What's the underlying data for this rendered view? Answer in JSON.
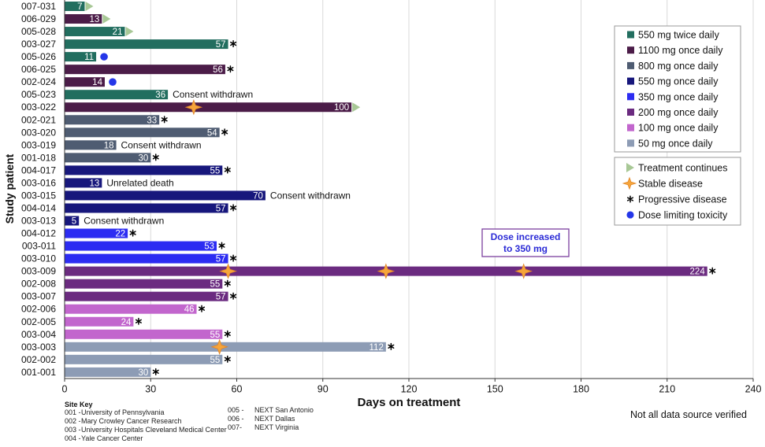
{
  "chart_data": {
    "type": "bar",
    "xlabel": "Days on treatment",
    "ylabel": "Study patient",
    "xlim": [
      0,
      240
    ],
    "xticks": [
      0,
      30,
      60,
      90,
      120,
      150,
      180,
      210,
      240
    ],
    "grid": true,
    "dose_groups": [
      {
        "label": "550 mg twice daily",
        "color": "#226e5f"
      },
      {
        "label": "1100 mg once daily",
        "color": "#4b1c48"
      },
      {
        "label": "800 mg once daily",
        "color": "#4f5c72"
      },
      {
        "label": "550 mg once daily",
        "color": "#17177c"
      },
      {
        "label": "350 mg once daily",
        "color": "#2c2cf2"
      },
      {
        "label": "200 mg once daily",
        "color": "#6b2b80"
      },
      {
        "label": "100 mg once daily",
        "color": "#c266cd"
      },
      {
        "label": "50 mg once daily",
        "color": "#8d9cb5"
      }
    ],
    "marker_legend": [
      {
        "label": "Treatment continues",
        "icon": "triangle-icon",
        "color": "#a8c896"
      },
      {
        "label": "Stable disease",
        "icon": "star-icon",
        "color": "#f6a53a"
      },
      {
        "label": "Progressive disease",
        "icon": "asterisk-icon",
        "color": "#000000"
      },
      {
        "label": "Dose limiting toxicity",
        "icon": "dot-icon",
        "color": "#2436e8"
      }
    ],
    "patients": [
      {
        "id": "007-031",
        "days": 7,
        "dose_group": 0,
        "end": "triangle-icon"
      },
      {
        "id": "006-029",
        "days": 13,
        "dose_group": 1,
        "end": "triangle-icon"
      },
      {
        "id": "005-028",
        "days": 21,
        "dose_group": 0,
        "end": "triangle-icon"
      },
      {
        "id": "003-027",
        "days": 57,
        "dose_group": 0,
        "end": "asterisk-icon"
      },
      {
        "id": "005-026",
        "days": 11,
        "dose_group": 0,
        "end": "dot-icon"
      },
      {
        "id": "006-025",
        "days": 56,
        "dose_group": 1,
        "end": "asterisk-icon"
      },
      {
        "id": "002-024",
        "days": 14,
        "dose_group": 1,
        "end": "dot-icon"
      },
      {
        "id": "005-023",
        "days": 36,
        "dose_group": 0,
        "note": "Consent withdrawn"
      },
      {
        "id": "003-022",
        "days": 100,
        "dose_group": 1,
        "end": "triangle-icon",
        "stable_disease": [
          45
        ]
      },
      {
        "id": "002-021",
        "days": 33,
        "dose_group": 2,
        "end": "asterisk-icon"
      },
      {
        "id": "003-020",
        "days": 54,
        "dose_group": 2,
        "end": "asterisk-icon"
      },
      {
        "id": "003-019",
        "days": 18,
        "dose_group": 2,
        "note": "Consent withdrawn"
      },
      {
        "id": "001-018",
        "days": 30,
        "dose_group": 2,
        "end": "asterisk-icon"
      },
      {
        "id": "004-017",
        "days": 55,
        "dose_group": 3,
        "end": "asterisk-icon"
      },
      {
        "id": "003-016",
        "days": 13,
        "dose_group": 3,
        "note": "Unrelated death"
      },
      {
        "id": "003-015",
        "days": 70,
        "dose_group": 3,
        "note": "Consent withdrawn"
      },
      {
        "id": "004-014",
        "days": 57,
        "dose_group": 3,
        "end": "asterisk-icon"
      },
      {
        "id": "003-013",
        "days": 5,
        "dose_group": 3,
        "note": "Consent withdrawn"
      },
      {
        "id": "004-012",
        "days": 22,
        "dose_group": 4,
        "end": "asterisk-icon"
      },
      {
        "id": "003-011",
        "days": 53,
        "dose_group": 4,
        "end": "asterisk-icon"
      },
      {
        "id": "003-010",
        "days": 57,
        "dose_group": 4,
        "end": "asterisk-icon"
      },
      {
        "id": "003-009",
        "days": 224,
        "dose_group": 5,
        "end": "asterisk-icon",
        "stable_disease": [
          57,
          112,
          160
        ]
      },
      {
        "id": "002-008",
        "days": 55,
        "dose_group": 5,
        "end": "asterisk-icon"
      },
      {
        "id": "003-007",
        "days": 57,
        "dose_group": 5,
        "end": "asterisk-icon"
      },
      {
        "id": "002-006",
        "days": 46,
        "dose_group": 6,
        "end": "asterisk-icon"
      },
      {
        "id": "002-005",
        "days": 24,
        "dose_group": 6,
        "end": "asterisk-icon"
      },
      {
        "id": "003-004",
        "days": 55,
        "dose_group": 6,
        "end": "asterisk-icon"
      },
      {
        "id": "003-003",
        "days": 112,
        "dose_group": 7,
        "end": "asterisk-icon",
        "stable_disease": [
          54
        ]
      },
      {
        "id": "002-002",
        "days": 55,
        "dose_group": 7,
        "end": "asterisk-icon"
      },
      {
        "id": "001-001",
        "days": 30,
        "dose_group": 7,
        "end": "asterisk-icon"
      }
    ],
    "annotation": {
      "lines": [
        "Dose increased",
        "to 350 mg"
      ],
      "text_color": "#2b2bd6",
      "border_color": "#7b3f9f"
    }
  },
  "site_key": {
    "title": "Site Key",
    "sites": [
      {
        "code": "001 -",
        "name": "University of Pennsylvania"
      },
      {
        "code": "002 -",
        "name": "Mary Crowley Cancer Research"
      },
      {
        "code": "003 -",
        "name": "University Hospitals Cleveland Medical Center"
      },
      {
        "code": "004 -",
        "name": "Yale Cancer Center"
      },
      {
        "code": "005 -",
        "name": "NEXT San Antonio"
      },
      {
        "code": "006 -",
        "name": "NEXT Dallas"
      },
      {
        "code": "007-",
        "name": "NEXT Virginia"
      }
    ]
  },
  "footnote": "Not all data source verified"
}
